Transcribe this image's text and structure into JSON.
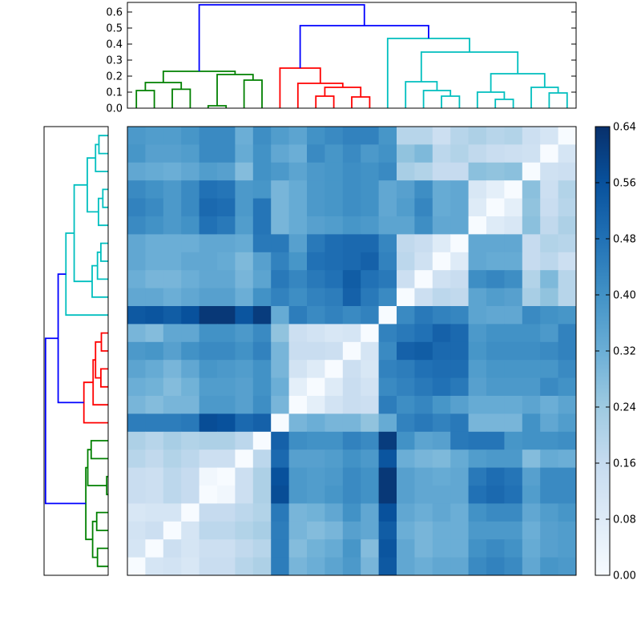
{
  "figure": {
    "background": "#ffffff",
    "description": "Hierarchically clustered distance-matrix heatmap with row and column dendrograms and a colorbar"
  },
  "chart_data": {
    "type": "heatmap",
    "n": 25,
    "vmin": 0.0,
    "vmax": 0.64,
    "colormap_name": "Blues",
    "colormap_stops": [
      "#f7fbff",
      "#deebf7",
      "#c6dbef",
      "#9ecae1",
      "#6baed6",
      "#4292c6",
      "#2171b5",
      "#08519c",
      "#08306b"
    ],
    "grid": false,
    "row_order_note": "rows are the reversed column leaf order; zero diagonal runs bottom-left to top-right",
    "values": [
      [
        0.38,
        0.37,
        0.37,
        0.39,
        0.42,
        0.42,
        0.32,
        0.41,
        0.37,
        0.35,
        0.4,
        0.42,
        0.44,
        0.44,
        0.39,
        0.19,
        0.19,
        0.14,
        0.19,
        0.21,
        0.19,
        0.2,
        0.14,
        0.11,
        0.0
      ],
      [
        0.39,
        0.36,
        0.36,
        0.37,
        0.42,
        0.42,
        0.33,
        0.4,
        0.34,
        0.32,
        0.42,
        0.39,
        0.42,
        0.38,
        0.4,
        0.26,
        0.29,
        0.18,
        0.2,
        0.17,
        0.15,
        0.14,
        0.13,
        0.0,
        0.11
      ],
      [
        0.34,
        0.33,
        0.32,
        0.34,
        0.37,
        0.36,
        0.28,
        0.4,
        0.38,
        0.35,
        0.38,
        0.39,
        0.41,
        0.4,
        0.42,
        0.22,
        0.2,
        0.16,
        0.16,
        0.27,
        0.26,
        0.27,
        0.0,
        0.13,
        0.14
      ],
      [
        0.42,
        0.4,
        0.38,
        0.42,
        0.48,
        0.47,
        0.38,
        0.39,
        0.3,
        0.33,
        0.38,
        0.39,
        0.41,
        0.4,
        0.34,
        0.36,
        0.41,
        0.33,
        0.34,
        0.1,
        0.06,
        0.0,
        0.27,
        0.14,
        0.2
      ],
      [
        0.44,
        0.42,
        0.38,
        0.42,
        0.5,
        0.49,
        0.38,
        0.47,
        0.3,
        0.33,
        0.38,
        0.39,
        0.41,
        0.4,
        0.34,
        0.37,
        0.43,
        0.33,
        0.34,
        0.08,
        0.0,
        0.06,
        0.26,
        0.15,
        0.19
      ],
      [
        0.42,
        0.4,
        0.38,
        0.4,
        0.48,
        0.46,
        0.37,
        0.47,
        0.3,
        0.33,
        0.36,
        0.37,
        0.39,
        0.38,
        0.35,
        0.35,
        0.41,
        0.34,
        0.34,
        0.0,
        0.08,
        0.1,
        0.27,
        0.17,
        0.21
      ],
      [
        0.34,
        0.32,
        0.32,
        0.32,
        0.34,
        0.34,
        0.33,
        0.46,
        0.46,
        0.36,
        0.46,
        0.49,
        0.5,
        0.5,
        0.43,
        0.17,
        0.15,
        0.08,
        0.0,
        0.34,
        0.34,
        0.34,
        0.16,
        0.2,
        0.19
      ],
      [
        0.34,
        0.32,
        0.32,
        0.34,
        0.34,
        0.33,
        0.29,
        0.36,
        0.44,
        0.39,
        0.48,
        0.49,
        0.5,
        0.52,
        0.44,
        0.18,
        0.13,
        0.0,
        0.08,
        0.34,
        0.33,
        0.33,
        0.16,
        0.18,
        0.14
      ],
      [
        0.32,
        0.3,
        0.3,
        0.32,
        0.34,
        0.34,
        0.3,
        0.35,
        0.46,
        0.43,
        0.46,
        0.48,
        0.53,
        0.48,
        0.46,
        0.14,
        0.0,
        0.13,
        0.15,
        0.41,
        0.43,
        0.41,
        0.2,
        0.29,
        0.19
      ],
      [
        0.34,
        0.34,
        0.32,
        0.34,
        0.36,
        0.36,
        0.32,
        0.4,
        0.44,
        0.41,
        0.44,
        0.45,
        0.52,
        0.46,
        0.42,
        0.0,
        0.14,
        0.18,
        0.17,
        0.35,
        0.37,
        0.36,
        0.22,
        0.26,
        0.19
      ],
      [
        0.54,
        0.55,
        0.53,
        0.56,
        0.62,
        0.62,
        0.55,
        0.61,
        0.33,
        0.45,
        0.42,
        0.44,
        0.42,
        0.44,
        0.0,
        0.42,
        0.46,
        0.44,
        0.43,
        0.35,
        0.34,
        0.34,
        0.42,
        0.4,
        0.39
      ],
      [
        0.3,
        0.28,
        0.34,
        0.34,
        0.4,
        0.4,
        0.38,
        0.42,
        0.26,
        0.14,
        0.12,
        0.1,
        0.11,
        0.0,
        0.44,
        0.46,
        0.48,
        0.52,
        0.5,
        0.38,
        0.4,
        0.4,
        0.4,
        0.38,
        0.44
      ],
      [
        0.38,
        0.39,
        0.36,
        0.4,
        0.42,
        0.42,
        0.4,
        0.44,
        0.3,
        0.15,
        0.15,
        0.14,
        0.0,
        0.11,
        0.42,
        0.52,
        0.53,
        0.5,
        0.5,
        0.39,
        0.41,
        0.41,
        0.41,
        0.42,
        0.44
      ],
      [
        0.35,
        0.33,
        0.3,
        0.34,
        0.39,
        0.38,
        0.37,
        0.4,
        0.3,
        0.12,
        0.08,
        0.0,
        0.14,
        0.1,
        0.44,
        0.45,
        0.48,
        0.49,
        0.49,
        0.37,
        0.39,
        0.39,
        0.39,
        0.39,
        0.42
      ],
      [
        0.32,
        0.31,
        0.28,
        0.31,
        0.37,
        0.37,
        0.36,
        0.4,
        0.32,
        0.06,
        0.0,
        0.08,
        0.15,
        0.12,
        0.42,
        0.44,
        0.46,
        0.48,
        0.46,
        0.36,
        0.38,
        0.38,
        0.38,
        0.42,
        0.4
      ],
      [
        0.3,
        0.28,
        0.3,
        0.3,
        0.38,
        0.38,
        0.36,
        0.41,
        0.3,
        0.0,
        0.06,
        0.12,
        0.15,
        0.14,
        0.45,
        0.41,
        0.43,
        0.39,
        0.36,
        0.33,
        0.33,
        0.33,
        0.35,
        0.32,
        0.35
      ],
      [
        0.45,
        0.45,
        0.45,
        0.46,
        0.57,
        0.56,
        0.5,
        0.52,
        0.0,
        0.3,
        0.32,
        0.3,
        0.3,
        0.26,
        0.33,
        0.44,
        0.46,
        0.44,
        0.46,
        0.3,
        0.3,
        0.3,
        0.4,
        0.34,
        0.37
      ],
      [
        0.21,
        0.19,
        0.22,
        0.2,
        0.21,
        0.21,
        0.18,
        0.0,
        0.52,
        0.41,
        0.4,
        0.4,
        0.44,
        0.42,
        0.61,
        0.4,
        0.35,
        0.36,
        0.46,
        0.47,
        0.47,
        0.39,
        0.4,
        0.4,
        0.41
      ],
      [
        0.19,
        0.17,
        0.2,
        0.18,
        0.14,
        0.14,
        0.0,
        0.18,
        0.5,
        0.36,
        0.36,
        0.37,
        0.4,
        0.38,
        0.55,
        0.32,
        0.3,
        0.29,
        0.33,
        0.37,
        0.38,
        0.38,
        0.28,
        0.33,
        0.32
      ],
      [
        0.15,
        0.14,
        0.18,
        0.16,
        0.02,
        0.0,
        0.14,
        0.21,
        0.56,
        0.38,
        0.37,
        0.38,
        0.42,
        0.4,
        0.62,
        0.36,
        0.34,
        0.33,
        0.34,
        0.46,
        0.49,
        0.47,
        0.36,
        0.42,
        0.42
      ],
      [
        0.15,
        0.14,
        0.18,
        0.16,
        0.0,
        0.02,
        0.14,
        0.21,
        0.57,
        0.38,
        0.37,
        0.39,
        0.42,
        0.4,
        0.62,
        0.36,
        0.34,
        0.34,
        0.34,
        0.48,
        0.5,
        0.48,
        0.37,
        0.42,
        0.42
      ],
      [
        0.1,
        0.11,
        0.11,
        0.0,
        0.16,
        0.16,
        0.18,
        0.2,
        0.46,
        0.3,
        0.31,
        0.34,
        0.4,
        0.34,
        0.56,
        0.34,
        0.32,
        0.34,
        0.32,
        0.4,
        0.42,
        0.42,
        0.34,
        0.37,
        0.39
      ],
      [
        0.12,
        0.14,
        0.0,
        0.11,
        0.18,
        0.18,
        0.2,
        0.22,
        0.45,
        0.3,
        0.28,
        0.3,
        0.36,
        0.34,
        0.53,
        0.32,
        0.3,
        0.32,
        0.32,
        0.38,
        0.38,
        0.38,
        0.32,
        0.36,
        0.37
      ],
      [
        0.11,
        0.0,
        0.14,
        0.11,
        0.14,
        0.14,
        0.17,
        0.19,
        0.45,
        0.28,
        0.31,
        0.33,
        0.39,
        0.28,
        0.55,
        0.34,
        0.3,
        0.32,
        0.32,
        0.4,
        0.42,
        0.4,
        0.33,
        0.36,
        0.37
      ],
      [
        0.0,
        0.11,
        0.12,
        0.1,
        0.15,
        0.15,
        0.19,
        0.21,
        0.45,
        0.3,
        0.32,
        0.35,
        0.38,
        0.3,
        0.54,
        0.34,
        0.32,
        0.34,
        0.34,
        0.42,
        0.44,
        0.42,
        0.34,
        0.39,
        0.38
      ]
    ],
    "dendrogram": {
      "axis_max": 0.66,
      "cluster_colors": {
        "green": "#008000",
        "red": "#ff0000",
        "cyan": "#00bfbf",
        "blue": "#0000ff"
      },
      "links": [
        {
          "c1": 0.5,
          "h1": 0,
          "c2": 1.5,
          "h2": 0,
          "h": 0.11,
          "color": "green"
        },
        {
          "c1": 2.5,
          "h1": 0,
          "c2": 3.5,
          "h2": 0,
          "h": 0.118,
          "color": "green"
        },
        {
          "c1": 1.0,
          "h1": 0.11,
          "c2": 3.0,
          "h2": 0.118,
          "h": 0.16,
          "color": "green"
        },
        {
          "c1": 4.5,
          "h1": 0,
          "c2": 5.5,
          "h2": 0,
          "h": 0.015,
          "color": "green"
        },
        {
          "c1": 6.5,
          "h1": 0,
          "c2": 7.5,
          "h2": 0,
          "h": 0.175,
          "color": "green"
        },
        {
          "c1": 5.0,
          "h1": 0.015,
          "c2": 7.0,
          "h2": 0.175,
          "h": 0.21,
          "color": "green"
        },
        {
          "c1": 2.0,
          "h1": 0.16,
          "c2": 6.0,
          "h2": 0.21,
          "h": 0.23,
          "color": "green"
        },
        {
          "c1": 10.5,
          "h1": 0,
          "c2": 11.5,
          "h2": 0,
          "h": 0.075,
          "color": "red"
        },
        {
          "c1": 12.5,
          "h1": 0,
          "c2": 13.5,
          "h2": 0,
          "h": 0.07,
          "color": "red"
        },
        {
          "c1": 11.0,
          "h1": 0.075,
          "c2": 13.0,
          "h2": 0.07,
          "h": 0.13,
          "color": "red"
        },
        {
          "c1": 9.5,
          "h1": 0,
          "c2": 12.0,
          "h2": 0.13,
          "h": 0.155,
          "color": "red"
        },
        {
          "c1": 8.5,
          "h1": 0,
          "c2": 10.75,
          "h2": 0.155,
          "h": 0.25,
          "color": "red"
        },
        {
          "c1": 17.5,
          "h1": 0,
          "c2": 18.5,
          "h2": 0,
          "h": 0.075,
          "color": "cyan"
        },
        {
          "c1": 16.5,
          "h1": 0,
          "c2": 18.0,
          "h2": 0.075,
          "h": 0.11,
          "color": "cyan"
        },
        {
          "c1": 15.5,
          "h1": 0,
          "c2": 17.25,
          "h2": 0.11,
          "h": 0.165,
          "color": "cyan"
        },
        {
          "c1": 20.5,
          "h1": 0,
          "c2": 21.5,
          "h2": 0,
          "h": 0.055,
          "color": "cyan"
        },
        {
          "c1": 19.5,
          "h1": 0,
          "c2": 21.0,
          "h2": 0.055,
          "h": 0.1,
          "color": "cyan"
        },
        {
          "c1": 23.5,
          "h1": 0,
          "c2": 24.5,
          "h2": 0,
          "h": 0.095,
          "color": "cyan"
        },
        {
          "c1": 22.5,
          "h1": 0,
          "c2": 24.0,
          "h2": 0.095,
          "h": 0.13,
          "color": "cyan"
        },
        {
          "c1": 20.25,
          "h1": 0.1,
          "c2": 23.25,
          "h2": 0.13,
          "h": 0.215,
          "color": "cyan"
        },
        {
          "c1": 16.375,
          "h1": 0.165,
          "c2": 21.75,
          "h2": 0.215,
          "h": 0.35,
          "color": "cyan"
        },
        {
          "c1": 14.5,
          "h1": 0,
          "c2": 19.0625,
          "h2": 0.35,
          "h": 0.435,
          "color": "cyan"
        },
        {
          "c1": 9.625,
          "h1": 0.25,
          "c2": 16.78125,
          "h2": 0.435,
          "h": 0.515,
          "color": "blue"
        },
        {
          "c1": 4.0,
          "h1": 0.23,
          "c2": 13.203125,
          "h2": 0.515,
          "h": 0.645,
          "color": "blue"
        }
      ]
    },
    "top_axis": {
      "tick_labels": [
        "0.6",
        "0.5",
        "0.4",
        "0.3",
        "0.2",
        "0.1",
        "0.0"
      ],
      "tick_values": [
        0.6,
        0.5,
        0.4,
        0.3,
        0.2,
        0.1,
        0.0
      ]
    },
    "colorbar": {
      "tick_labels": [
        "0.64",
        "0.56",
        "0.48",
        "0.40",
        "0.32",
        "0.24",
        "0.16",
        "0.08",
        "0.00"
      ],
      "tick_values": [
        0.64,
        0.56,
        0.48,
        0.4,
        0.32,
        0.24,
        0.16,
        0.08,
        0.0
      ]
    }
  }
}
